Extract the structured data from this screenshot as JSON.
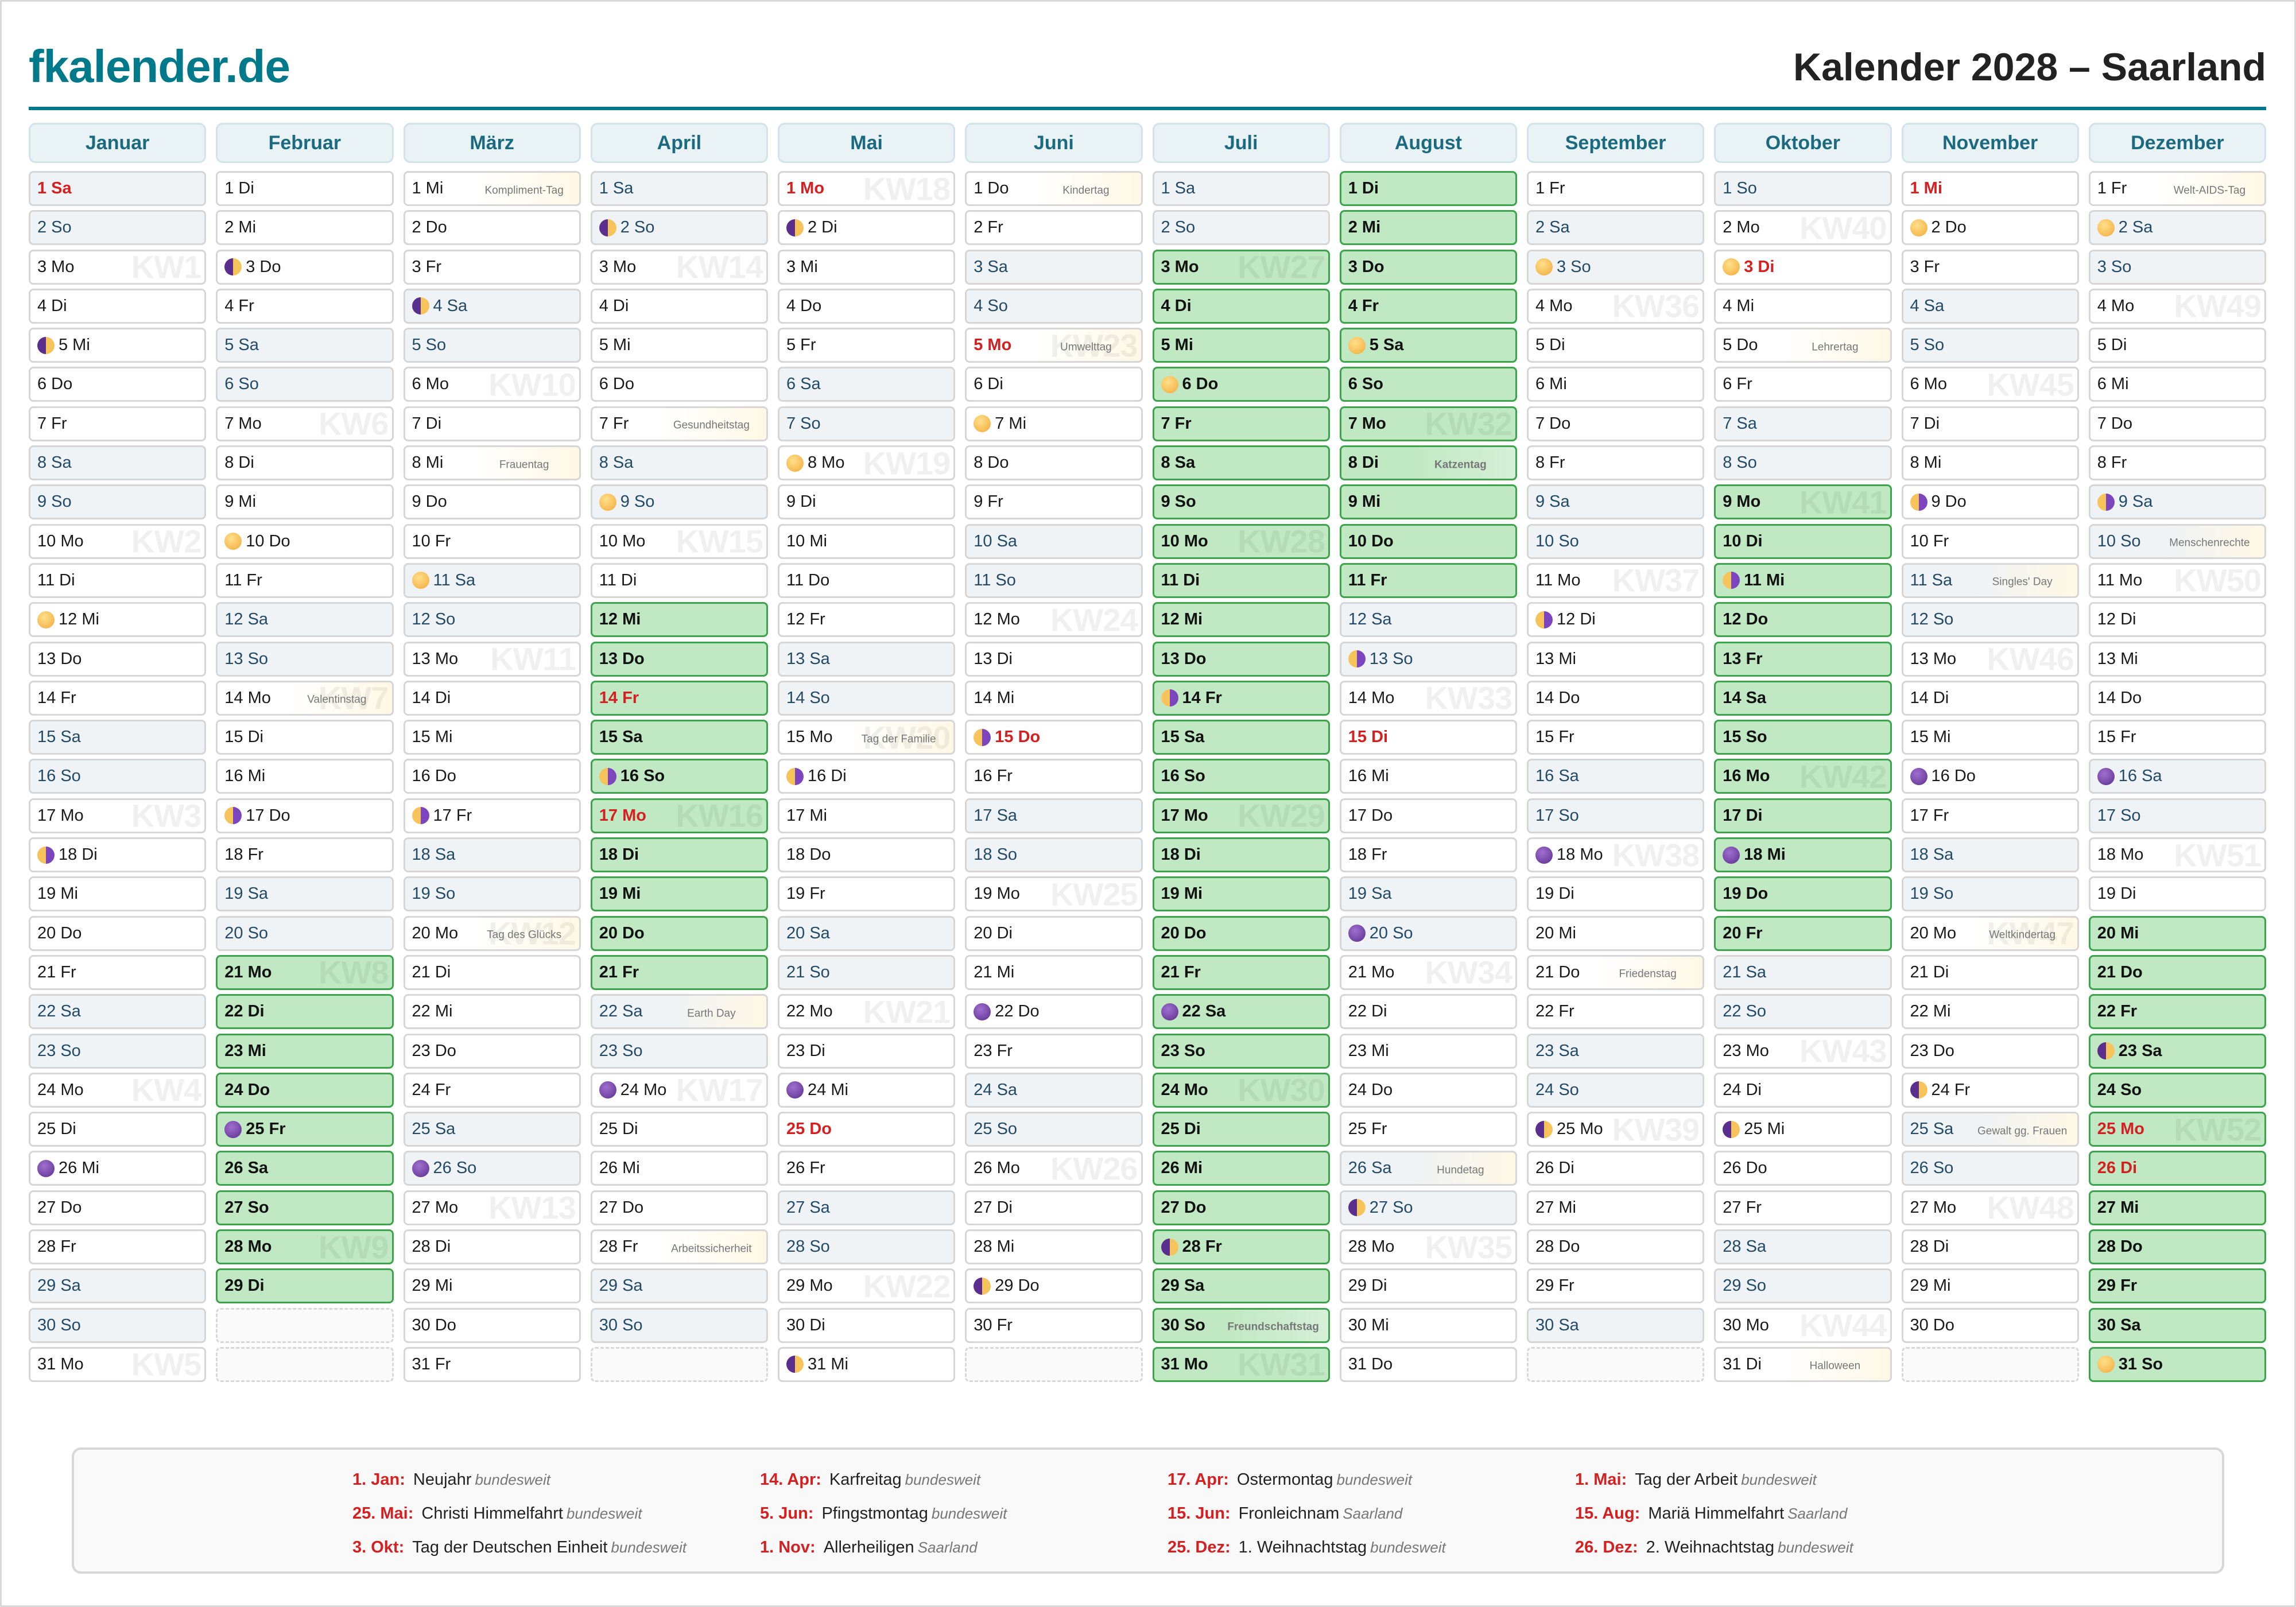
{
  "header": {
    "logo": "fkalender.de",
    "title": "Kalender 2028 – Saarland"
  },
  "colors": {
    "brand": "#007a8a",
    "holiday_red": "#d42020",
    "vacation_green": "#c0e8c2",
    "weekend_bg": "#eff3f6",
    "month_header_bg": "#e9f2f5"
  },
  "weekday_abbr": [
    "So",
    "Mo",
    "Di",
    "Mi",
    "Do",
    "Fr",
    "Sa"
  ],
  "months": [
    {
      "name": "Januar",
      "days": 31,
      "first_wd": 6,
      "holidays": [
        1
      ],
      "vacation": [],
      "moons": {
        "5": "first",
        "12": "full",
        "18": "last",
        "26": "new"
      },
      "events": {},
      "kw": {
        "3": "KW1",
        "10": "KW2",
        "17": "KW3",
        "24": "KW4",
        "31": "KW5"
      }
    },
    {
      "name": "Februar",
      "days": 29,
      "first_wd": 2,
      "holidays": [],
      "vacation": [
        21,
        22,
        23,
        24,
        25,
        26,
        27,
        28,
        29
      ],
      "moons": {
        "3": "first",
        "10": "full",
        "17": "last",
        "25": "new"
      },
      "events": {
        "14": "Valentinstag"
      },
      "kw": {
        "7": "KW6",
        "14": "KW7",
        "21": "KW8",
        "28": "KW9"
      }
    },
    {
      "name": "März",
      "days": 31,
      "first_wd": 3,
      "holidays": [],
      "vacation": [],
      "moons": {
        "4": "first",
        "11": "full",
        "17": "last",
        "26": "new"
      },
      "events": {
        "1": "Kompliment-Tag",
        "8": "Frauentag",
        "20": "Tag des Glücks"
      },
      "kw": {
        "6": "KW10",
        "13": "KW11",
        "20": "KW12",
        "27": "KW13"
      }
    },
    {
      "name": "April",
      "days": 30,
      "first_wd": 6,
      "holidays": [
        14,
        17
      ],
      "vacation": [
        12,
        13,
        14,
        15,
        16,
        17,
        18,
        19,
        20,
        21
      ],
      "moons": {
        "2": "first",
        "9": "full",
        "16": "last",
        "24": "new"
      },
      "events": {
        "7": "Gesundheitstag",
        "22": "Earth Day",
        "28": "Arbeitssicherheit"
      },
      "kw": {
        "3": "KW14",
        "10": "KW15",
        "17": "KW16",
        "24": "KW17"
      }
    },
    {
      "name": "Mai",
      "days": 31,
      "first_wd": 1,
      "holidays": [
        1,
        25
      ],
      "vacation": [],
      "moons": {
        "2": "first",
        "8": "full",
        "16": "last",
        "24": "new",
        "31": "first"
      },
      "events": {
        "15": "Tag der Familie"
      },
      "kw": {
        "1": "KW18",
        "8": "KW19",
        "15": "KW20",
        "22": "KW21",
        "29": "KW22"
      }
    },
    {
      "name": "Juni",
      "days": 30,
      "first_wd": 4,
      "holidays": [
        5,
        15
      ],
      "vacation": [],
      "moons": {
        "7": "full",
        "15": "last",
        "22": "new",
        "29": "first"
      },
      "events": {
        "1": "Kindertag",
        "5": "Umwelttag"
      },
      "kw": {
        "5": "KW23",
        "12": "KW24",
        "19": "KW25",
        "26": "KW26"
      }
    },
    {
      "name": "Juli",
      "days": 31,
      "first_wd": 6,
      "holidays": [],
      "vacation": [
        3,
        4,
        5,
        6,
        7,
        8,
        9,
        10,
        11,
        12,
        13,
        14,
        15,
        16,
        17,
        18,
        19,
        20,
        21,
        22,
        23,
        24,
        25,
        26,
        27,
        28,
        29,
        30,
        31
      ],
      "moons": {
        "6": "full",
        "14": "last",
        "22": "new",
        "28": "first"
      },
      "events": {
        "30": "Freundschaftstag"
      },
      "kw": {
        "3": "KW27",
        "10": "KW28",
        "17": "KW29",
        "24": "KW30",
        "31": "KW31"
      }
    },
    {
      "name": "August",
      "days": 31,
      "first_wd": 2,
      "holidays": [
        15
      ],
      "vacation": [
        1,
        2,
        3,
        4,
        5,
        6,
        7,
        8,
        9,
        10,
        11
      ],
      "moons": {
        "5": "full",
        "13": "last",
        "20": "new",
        "27": "first"
      },
      "events": {
        "8": "Katzentag",
        "26": "Hundetag"
      },
      "kw": {
        "7": "KW32",
        "14": "KW33",
        "21": "KW34",
        "28": "KW35"
      }
    },
    {
      "name": "September",
      "days": 30,
      "first_wd": 5,
      "holidays": [],
      "vacation": [],
      "moons": {
        "3": "full",
        "12": "last",
        "18": "new",
        "25": "first"
      },
      "events": {
        "21": "Friedenstag"
      },
      "kw": {
        "4": "KW36",
        "11": "KW37",
        "18": "KW38",
        "25": "KW39"
      }
    },
    {
      "name": "Oktober",
      "days": 31,
      "first_wd": 0,
      "holidays": [
        3
      ],
      "vacation": [
        9,
        10,
        11,
        12,
        13,
        14,
        15,
        16,
        17,
        18,
        19,
        20
      ],
      "moons": {
        "3": "full",
        "11": "last",
        "18": "new",
        "25": "first"
      },
      "events": {
        "5": "Lehrertag",
        "31": "Halloween"
      },
      "kw": {
        "2": "KW40",
        "9": "KW41",
        "16": "KW42",
        "23": "KW43",
        "30": "KW44"
      }
    },
    {
      "name": "November",
      "days": 30,
      "first_wd": 3,
      "holidays": [
        1
      ],
      "vacation": [],
      "moons": {
        "2": "full",
        "9": "last",
        "16": "new",
        "24": "first"
      },
      "events": {
        "11": "Singles' Day",
        "20": "Weltkindertag",
        "25": "Gewalt gg. Frauen"
      },
      "kw": {
        "6": "KW45",
        "13": "KW46",
        "20": "KW47",
        "27": "KW48"
      }
    },
    {
      "name": "Dezember",
      "days": 31,
      "first_wd": 5,
      "holidays": [
        25,
        26
      ],
      "vacation": [
        20,
        21,
        22,
        23,
        24,
        25,
        26,
        27,
        28,
        29,
        30,
        31
      ],
      "moons": {
        "2": "full",
        "9": "last",
        "16": "new",
        "23": "first",
        "31": "full"
      },
      "events": {
        "1": "Welt-AIDS-Tag",
        "10": "Menschenrechte"
      },
      "kw": {
        "4": "KW49",
        "11": "KW50",
        "18": "KW51",
        "25": "KW52"
      }
    }
  ],
  "legend": [
    {
      "date": "1. Jan:",
      "name": "Neujahr",
      "scope": "bundesweit"
    },
    {
      "date": "14. Apr:",
      "name": "Karfreitag",
      "scope": "bundesweit"
    },
    {
      "date": "17. Apr:",
      "name": "Ostermontag",
      "scope": "bundesweit"
    },
    {
      "date": "1. Mai:",
      "name": "Tag der Arbeit",
      "scope": "bundesweit"
    },
    {
      "date": "25. Mai:",
      "name": "Christi Himmelfahrt",
      "scope": "bundesweit"
    },
    {
      "date": "5. Jun:",
      "name": "Pfingstmontag",
      "scope": "bundesweit"
    },
    {
      "date": "15. Jun:",
      "name": "Fronleichnam",
      "scope": "Saarland"
    },
    {
      "date": "15. Aug:",
      "name": "Mariä Himmelfahrt",
      "scope": "Saarland"
    },
    {
      "date": "3. Okt:",
      "name": "Tag der Deutschen Einheit",
      "scope": "bundesweit"
    },
    {
      "date": "1. Nov:",
      "name": "Allerheiligen",
      "scope": "Saarland"
    },
    {
      "date": "25. Dez:",
      "name": "1. Weihnachtstag",
      "scope": "bundesweit"
    },
    {
      "date": "26. Dez:",
      "name": "2. Weihnachtstag",
      "scope": "bundesweit"
    }
  ]
}
